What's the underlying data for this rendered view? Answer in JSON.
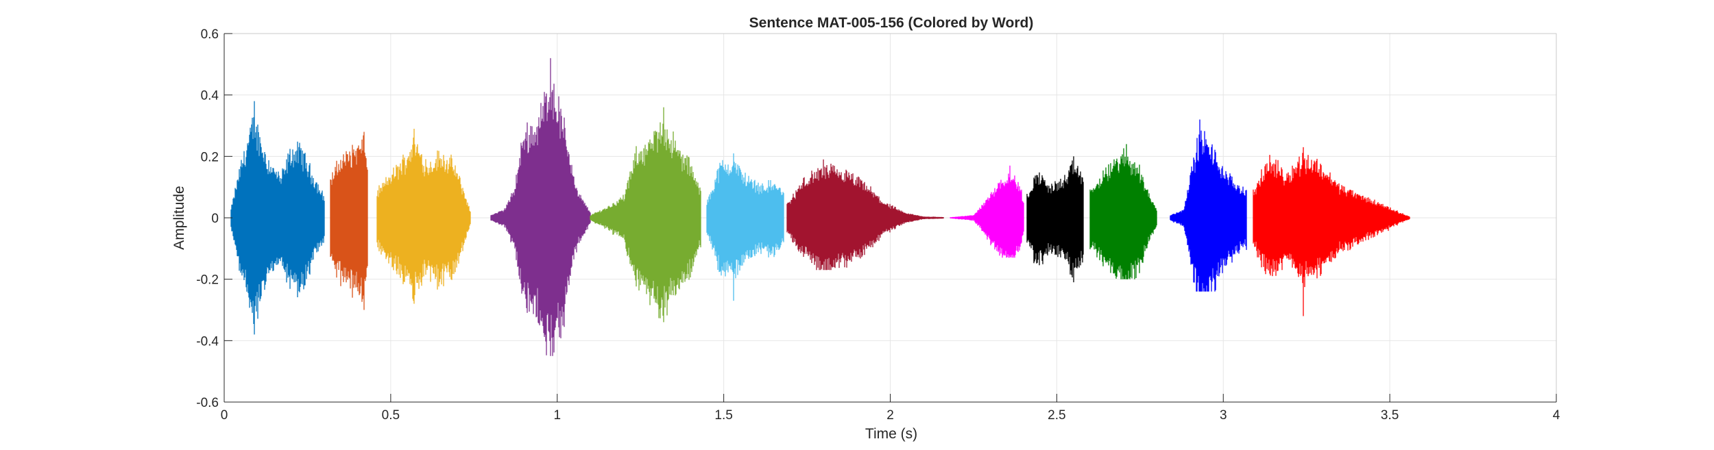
{
  "chart_data": {
    "type": "line",
    "title": "Sentence MAT-005-156 (Colored by Word)",
    "xlabel": "Time (s)",
    "ylabel": "Amplitude",
    "xlim": [
      0,
      4
    ],
    "ylim": [
      -0.6,
      0.6
    ],
    "xticks": [
      0,
      0.5,
      1,
      1.5,
      2,
      2.5,
      3,
      3.5,
      4
    ],
    "xtick_labels": [
      "0",
      "0.5",
      "1",
      "1.5",
      "2",
      "2.5",
      "3",
      "3.5",
      "4"
    ],
    "yticks": [
      -0.6,
      -0.4,
      -0.2,
      0,
      0.2,
      0.4,
      0.6
    ],
    "ytick_labels": [
      "-0.6",
      "-0.4",
      "-0.2",
      "0",
      "0.2",
      "0.4",
      "0.6"
    ],
    "grid": true,
    "series": [
      {
        "color": "#0072BD",
        "t_start": 0.02,
        "t_end": 0.3,
        "peak_pos": 0.38,
        "peak_neg": -0.38,
        "envelope": [
          [
            0.02,
            0.03
          ],
          [
            0.05,
            0.2
          ],
          [
            0.09,
            0.37
          ],
          [
            0.13,
            0.22
          ],
          [
            0.17,
            0.15
          ],
          [
            0.2,
            0.25
          ],
          [
            0.23,
            0.26
          ],
          [
            0.27,
            0.15
          ],
          [
            0.3,
            0.08
          ]
        ]
      },
      {
        "color": "#D95319",
        "t_start": 0.32,
        "t_end": 0.43,
        "peak_pos": 0.28,
        "peak_neg": -0.3,
        "envelope": [
          [
            0.32,
            0.15
          ],
          [
            0.35,
            0.22
          ],
          [
            0.39,
            0.26
          ],
          [
            0.42,
            0.28
          ],
          [
            0.43,
            0.2
          ]
        ]
      },
      {
        "color": "#EDB120",
        "t_start": 0.46,
        "t_end": 0.74,
        "peak_pos": 0.29,
        "peak_neg": -0.28,
        "envelope": [
          [
            0.46,
            0.1
          ],
          [
            0.5,
            0.16
          ],
          [
            0.54,
            0.22
          ],
          [
            0.57,
            0.29
          ],
          [
            0.61,
            0.2
          ],
          [
            0.65,
            0.24
          ],
          [
            0.69,
            0.2
          ],
          [
            0.72,
            0.1
          ],
          [
            0.74,
            0.02
          ]
        ]
      },
      {
        "color": "#7E2F8E",
        "t_start": 0.8,
        "t_end": 1.1,
        "peak_pos": 0.52,
        "peak_neg": -0.45,
        "envelope": [
          [
            0.8,
            0.01
          ],
          [
            0.84,
            0.03
          ],
          [
            0.87,
            0.1
          ],
          [
            0.9,
            0.32
          ],
          [
            0.94,
            0.35
          ],
          [
            0.98,
            0.52
          ],
          [
            1.02,
            0.35
          ],
          [
            1.06,
            0.1
          ],
          [
            1.1,
            0.02
          ]
        ]
      },
      {
        "color": "#77AC30",
        "t_start": 1.1,
        "t_end": 1.43,
        "peak_pos": 0.36,
        "peak_neg": -0.34,
        "envelope": [
          [
            1.1,
            0.01
          ],
          [
            1.15,
            0.04
          ],
          [
            1.2,
            0.08
          ],
          [
            1.24,
            0.25
          ],
          [
            1.28,
            0.28
          ],
          [
            1.32,
            0.36
          ],
          [
            1.36,
            0.26
          ],
          [
            1.4,
            0.2
          ],
          [
            1.43,
            0.1
          ]
        ]
      },
      {
        "color": "#4DBEEE",
        "t_start": 1.45,
        "t_end": 1.68,
        "peak_pos": 0.21,
        "peak_neg": -0.27,
        "envelope": [
          [
            1.45,
            0.06
          ],
          [
            1.49,
            0.2
          ],
          [
            1.53,
            0.21
          ],
          [
            1.57,
            0.15
          ],
          [
            1.61,
            0.12
          ],
          [
            1.65,
            0.13
          ],
          [
            1.68,
            0.1
          ]
        ]
      },
      {
        "color": "#A2142F",
        "t_start": 1.69,
        "t_end": 2.16,
        "peak_pos": 0.19,
        "peak_neg": -0.17,
        "envelope": [
          [
            1.69,
            0.05
          ],
          [
            1.74,
            0.14
          ],
          [
            1.8,
            0.19
          ],
          [
            1.86,
            0.17
          ],
          [
            1.92,
            0.13
          ],
          [
            1.98,
            0.06
          ],
          [
            2.04,
            0.02
          ],
          [
            2.1,
            0.005
          ],
          [
            2.16,
            0.003
          ]
        ]
      },
      {
        "color": "#FF00FF",
        "t_start": 2.18,
        "t_end": 2.4,
        "peak_pos": 0.17,
        "peak_neg": -0.13,
        "envelope": [
          [
            2.18,
            0.002
          ],
          [
            2.25,
            0.01
          ],
          [
            2.29,
            0.07
          ],
          [
            2.33,
            0.14
          ],
          [
            2.36,
            0.17
          ],
          [
            2.39,
            0.12
          ],
          [
            2.4,
            0.06
          ]
        ]
      },
      {
        "color": "#000000",
        "t_start": 2.41,
        "t_end": 2.58,
        "peak_pos": 0.2,
        "peak_neg": -0.21,
        "envelope": [
          [
            2.41,
            0.08
          ],
          [
            2.44,
            0.17
          ],
          [
            2.48,
            0.12
          ],
          [
            2.52,
            0.14
          ],
          [
            2.55,
            0.2
          ],
          [
            2.58,
            0.16
          ]
        ]
      },
      {
        "color": "#008000",
        "t_start": 2.6,
        "t_end": 2.8,
        "peak_pos": 0.24,
        "peak_neg": -0.2,
        "envelope": [
          [
            2.6,
            0.1
          ],
          [
            2.64,
            0.16
          ],
          [
            2.68,
            0.22
          ],
          [
            2.71,
            0.24
          ],
          [
            2.75,
            0.18
          ],
          [
            2.78,
            0.08
          ],
          [
            2.8,
            0.03
          ]
        ]
      },
      {
        "color": "#0000FF",
        "t_start": 2.84,
        "t_end": 3.07,
        "peak_pos": 0.32,
        "peak_neg": -0.24,
        "envelope": [
          [
            2.84,
            0.01
          ],
          [
            2.88,
            0.03
          ],
          [
            2.9,
            0.15
          ],
          [
            2.93,
            0.32
          ],
          [
            2.97,
            0.25
          ],
          [
            3.01,
            0.16
          ],
          [
            3.05,
            0.12
          ],
          [
            3.07,
            0.1
          ]
        ]
      },
      {
        "color": "#FF0000",
        "t_start": 3.09,
        "t_end": 3.56,
        "peak_pos": 0.23,
        "peak_neg": -0.32,
        "envelope": [
          [
            3.09,
            0.1
          ],
          [
            3.14,
            0.22
          ],
          [
            3.19,
            0.16
          ],
          [
            3.24,
            0.23
          ],
          [
            3.29,
            0.2
          ],
          [
            3.35,
            0.12
          ],
          [
            3.42,
            0.08
          ],
          [
            3.48,
            0.05
          ],
          [
            3.53,
            0.02
          ],
          [
            3.56,
            0.005
          ]
        ]
      }
    ]
  }
}
